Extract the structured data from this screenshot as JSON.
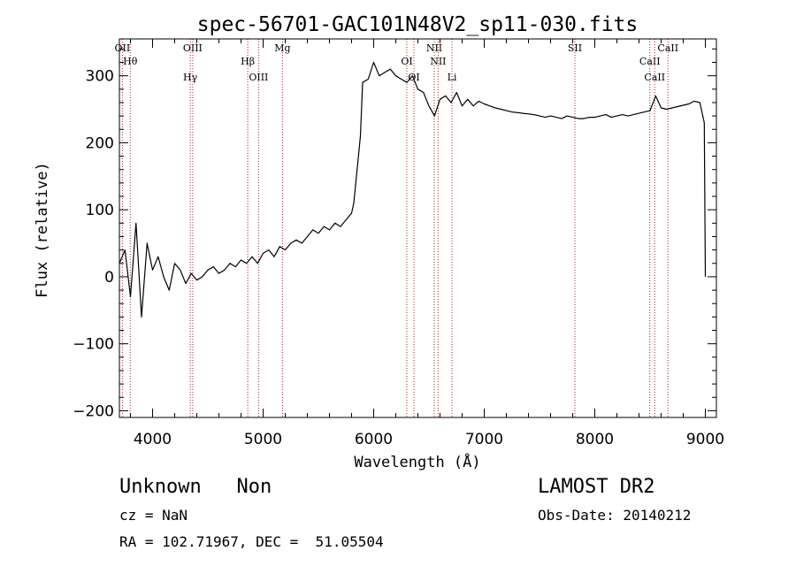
{
  "chart_data": {
    "type": "line",
    "title": "spec-56701-GAC101N48V2_sp11-030.fits",
    "xlabel": "Wavelength (Å)",
    "ylabel": "Flux (relative)",
    "xlim": [
      3700,
      9100
    ],
    "ylim": [
      -210,
      355
    ],
    "xticks": [
      4000,
      5000,
      6000,
      7000,
      8000,
      9000
    ],
    "yticks": [
      -200,
      -100,
      0,
      100,
      200,
      300
    ],
    "xtick_labels": [
      "4000",
      "5000",
      "6000",
      "7000",
      "8000",
      "9000"
    ],
    "ytick_labels": [
      "−200",
      "−100",
      "0",
      "100",
      "200",
      "300"
    ],
    "grid": false,
    "series": [
      {
        "color": "#000000",
        "x": [
          3700,
          3750,
          3800,
          3850,
          3900,
          3950,
          4000,
          4050,
          4100,
          4150,
          4200,
          4250,
          4300,
          4350,
          4400,
          4450,
          4500,
          4550,
          4600,
          4650,
          4700,
          4750,
          4800,
          4850,
          4900,
          4950,
          5000,
          5050,
          5100,
          5150,
          5200,
          5250,
          5300,
          5350,
          5400,
          5450,
          5500,
          5550,
          5600,
          5650,
          5700,
          5750,
          5800,
          5820,
          5850,
          5880,
          5900,
          5950,
          6000,
          6050,
          6100,
          6150,
          6200,
          6250,
          6300,
          6350,
          6400,
          6450,
          6500,
          6550,
          6600,
          6650,
          6700,
          6750,
          6800,
          6850,
          6900,
          6950,
          7000,
          7050,
          7100,
          7150,
          7200,
          7250,
          7300,
          7350,
          7400,
          7450,
          7500,
          7550,
          7600,
          7650,
          7700,
          7750,
          7800,
          7850,
          7900,
          7950,
          8000,
          8050,
          8100,
          8150,
          8200,
          8250,
          8300,
          8350,
          8400,
          8450,
          8500,
          8550,
          8600,
          8650,
          8700,
          8750,
          8800,
          8850,
          8900,
          8950,
          8990,
          9000
        ],
        "y": [
          20,
          40,
          -30,
          80,
          -60,
          50,
          10,
          30,
          0,
          -20,
          20,
          10,
          -10,
          5,
          -5,
          0,
          10,
          15,
          5,
          10,
          20,
          15,
          25,
          20,
          30,
          20,
          35,
          40,
          30,
          45,
          40,
          50,
          55,
          50,
          60,
          70,
          65,
          75,
          70,
          80,
          75,
          85,
          95,
          110,
          160,
          210,
          290,
          295,
          320,
          300,
          305,
          310,
          300,
          295,
          290,
          300,
          280,
          275,
          255,
          240,
          265,
          270,
          260,
          275,
          255,
          265,
          255,
          262,
          258,
          255,
          252,
          250,
          248,
          246,
          245,
          244,
          243,
          242,
          240,
          238,
          240,
          238,
          236,
          240,
          238,
          236,
          236,
          238,
          238,
          240,
          242,
          238,
          240,
          242,
          240,
          242,
          244,
          246,
          248,
          270,
          252,
          250,
          252,
          254,
          256,
          258,
          262,
          260,
          230,
          0
        ]
      }
    ],
    "line_markers": [
      {
        "x": 3727,
        "label": "OII"
      },
      {
        "x": 3798,
        "label": "Hθ"
      },
      {
        "x": 4341,
        "label": "Hγ"
      },
      {
        "x": 4363,
        "label": "OIII"
      },
      {
        "x": 4861,
        "label": "Hβ"
      },
      {
        "x": 4959,
        "label": "OIII"
      },
      {
        "x": 5175,
        "label": "Mg"
      },
      {
        "x": 6300,
        "label": "OI"
      },
      {
        "x": 6364,
        "label": "OI"
      },
      {
        "x": 6548,
        "label": "NII"
      },
      {
        "x": 6583,
        "label": "NII"
      },
      {
        "x": 6708,
        "label": "Li"
      },
      {
        "x": 7820,
        "label": "SII"
      },
      {
        "x": 8498,
        "label": "CaII"
      },
      {
        "x": 8542,
        "label": "CaII"
      },
      {
        "x": 8662,
        "label": "CaII"
      }
    ],
    "marker_color": "#a02020"
  },
  "info": {
    "class_label": "Unknown   Non",
    "cz": "cz = NaN",
    "radec": "RA = 102.71967, DEC =  51.05504",
    "survey": "LAMOST DR2",
    "obs_date": "Obs-Date: 20140212"
  }
}
